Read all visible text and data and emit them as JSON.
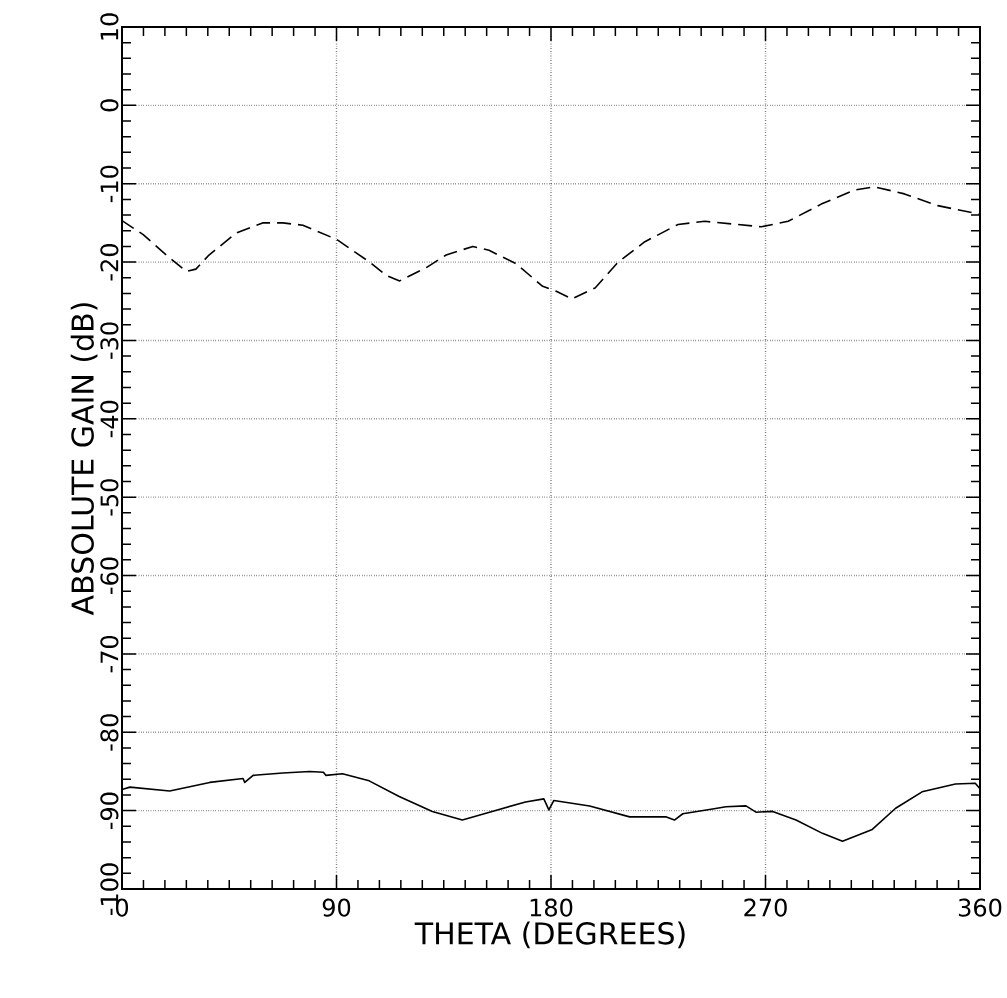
{
  "chart_data": {
    "type": "line",
    "xlabel": "THETA (DEGREES)",
    "ylabel": "ABSOLUTE GAIN (dB)",
    "xlim": [
      0,
      360
    ],
    "ylim": [
      -100,
      10
    ],
    "xticks": [
      0,
      90,
      180,
      270,
      360
    ],
    "yticks": [
      -100,
      -90,
      -80,
      -70,
      -60,
      -50,
      -40,
      -30,
      -20,
      -10,
      0,
      10
    ],
    "grid": true,
    "series": [
      {
        "color": "#000000",
        "line_style": "dashed",
        "x": [
          0,
          8.9,
          18.6,
          27,
          31,
          36.5,
          47.9,
          59,
          67.5,
          75.9,
          90,
          103.9,
          110.9,
          116.5,
          127.7,
          136,
          147.2,
          154,
          165.3,
          176.5,
          182,
          188.7,
          198.5,
          208.2,
          219.4,
          233.3,
          244.5,
          258.4,
          268.2,
          279.5,
          293.4,
          307.4,
          315.8,
          328.3,
          342.3,
          360
        ],
        "values": [
          -14.7,
          -16.5,
          -19.1,
          -21.2,
          -20.9,
          -19.1,
          -16.3,
          -15.0,
          -15.0,
          -15.3,
          -17.1,
          -20.0,
          -21.7,
          -22.4,
          -20.7,
          -19.1,
          -18.0,
          -18.5,
          -20.2,
          -23.1,
          -23.7,
          -24.7,
          -23.3,
          -20.0,
          -17.4,
          -15.2,
          -14.8,
          -15.2,
          -15.5,
          -14.8,
          -12.6,
          -10.8,
          -10.4,
          -11.3,
          -12.8,
          -13.9
        ]
      },
      {
        "color": "#000000",
        "line_style": "solid",
        "x": [
          0,
          3.3,
          20,
          36.8,
          50.8,
          51.5,
          55,
          67.5,
          78.7,
          84.5,
          85.5,
          92.5,
          103.7,
          116.3,
          130.2,
          142.8,
          155.3,
          169.3,
          177,
          179.1,
          181.2,
          196.2,
          213,
          228.4,
          231.8,
          235.3,
          247.8,
          253.4,
          261.8,
          266,
          273,
          282.8,
          293.9,
          302.3,
          314.8,
          324.6,
          335.7,
          349.7,
          358,
          360
        ],
        "values": [
          -87.3,
          -87.0,
          -87.5,
          -86.4,
          -85.9,
          -86.4,
          -85.5,
          -85.2,
          -85.0,
          -85.1,
          -85.5,
          -85.3,
          -86.2,
          -88.2,
          -90.1,
          -91.2,
          -90.1,
          -88.9,
          -88.5,
          -89.9,
          -88.7,
          -89.4,
          -90.8,
          -90.8,
          -91.2,
          -90.4,
          -89.8,
          -89.5,
          -89.4,
          -90.2,
          -90.1,
          -91.2,
          -92.9,
          -93.9,
          -92.4,
          -89.7,
          -87.6,
          -86.6,
          -86.5,
          -87.2
        ]
      }
    ]
  }
}
